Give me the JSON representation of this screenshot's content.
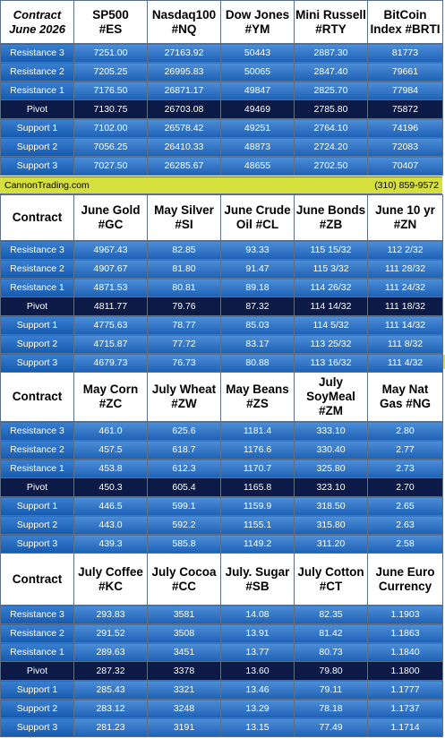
{
  "colors": {
    "band": "#d5df3d",
    "pivot": "#0b1a47",
    "row_top": "#4d8ed7",
    "row_bottom": "#1e62b6"
  },
  "row_labels": [
    "Resistance 3",
    "Resistance 2",
    "Resistance 1",
    "Pivot",
    "Support 1",
    "Support 2",
    "Support 3"
  ],
  "band": {
    "left": "CannonTrading.com",
    "right": "(310) 859-9572"
  },
  "sections": [
    {
      "corner_line1": "Contract",
      "corner_line2": "June 2026",
      "instruments": [
        {
          "line1": "SP500",
          "line2": "#ES"
        },
        {
          "line1": "Nasdaq100",
          "line2": "#NQ"
        },
        {
          "line1": "Dow Jones",
          "line2": "#YM"
        },
        {
          "line1": "Mini Russell",
          "line2": "#RTY"
        },
        {
          "line1": "BitCoin",
          "line2": "Index #BRTI"
        }
      ],
      "rows": [
        [
          "7251.00",
          "27163.92",
          "50443",
          "2887.30",
          "81773"
        ],
        [
          "7205.25",
          "26995.83",
          "50065",
          "2847.40",
          "79661"
        ],
        [
          "7176.50",
          "26871.17",
          "49847",
          "2825.70",
          "77984"
        ],
        [
          "7130.75",
          "26703.08",
          "49469",
          "2785.80",
          "75872"
        ],
        [
          "7102.00",
          "26578.42",
          "49251",
          "2764.10",
          "74196"
        ],
        [
          "7056.25",
          "26410.33",
          "48873",
          "2724.20",
          "72083"
        ],
        [
          "7027.50",
          "26285.67",
          "48655",
          "2702.50",
          "70407"
        ]
      ]
    },
    {
      "corner_line1": "Contract",
      "corner_line2": "",
      "instruments": [
        {
          "line1": "June Gold",
          "line2": "#GC"
        },
        {
          "line1": "May Silver",
          "line2": "#SI"
        },
        {
          "line1": "June Crude",
          "line2": "Oil #CL"
        },
        {
          "line1": "June Bonds",
          "line2": "#ZB"
        },
        {
          "line1": "June 10 yr",
          "line2": "#ZN"
        }
      ],
      "rows": [
        [
          "4967.43",
          "82.85",
          "93.33",
          "115 15/32",
          "112  2/32"
        ],
        [
          "4907.67",
          "81.80",
          "91.47",
          "115  3/32",
          "111 28/32"
        ],
        [
          "4871.53",
          "80.81",
          "89.18",
          "114 26/32",
          "111 24/32"
        ],
        [
          "4811.77",
          "79.76",
          "87.32",
          "114 14/32",
          "111 18/32"
        ],
        [
          "4775.63",
          "78.77",
          "85.03",
          "114  5/32",
          "111 14/32"
        ],
        [
          "4715.87",
          "77.72",
          "83.17",
          "113 25/32",
          "111  8/32"
        ],
        [
          "4679.73",
          "76.73",
          "80.88",
          "113 16/32",
          "111  4/32"
        ]
      ]
    },
    {
      "corner_line1": "Contract",
      "corner_line2": "",
      "instruments": [
        {
          "line1": "May Corn",
          "line2": "#ZC"
        },
        {
          "line1": "July  Wheat",
          "line2": "#ZW"
        },
        {
          "line1": "May Beans",
          "line2": "#ZS"
        },
        {
          "line1": "July",
          "line2": "SoyMeal",
          "line3": "#ZM"
        },
        {
          "line1": "May Nat",
          "line2": "Gas #NG"
        }
      ],
      "rows": [
        [
          "461.0",
          "625.6",
          "1181.4",
          "333.10",
          "2.80"
        ],
        [
          "457.5",
          "618.7",
          "1176.6",
          "330.40",
          "2.77"
        ],
        [
          "453.8",
          "612.3",
          "1170.7",
          "325.80",
          "2.73"
        ],
        [
          "450.3",
          "605.4",
          "1165.8",
          "323.10",
          "2.70"
        ],
        [
          "446.5",
          "599.1",
          "1159.9",
          "318.50",
          "2.65"
        ],
        [
          "443.0",
          "592.2",
          "1155.1",
          "315.80",
          "2.63"
        ],
        [
          "439.3",
          "585.8",
          "1149.2",
          "311.20",
          "2.58"
        ]
      ]
    },
    {
      "corner_line1": "Contract",
      "corner_line2": "",
      "instruments": [
        {
          "line1": "July Coffee",
          "line2": "#KC"
        },
        {
          "line1": "July Cocoa",
          "line2": "#CC"
        },
        {
          "line1": "July. Sugar",
          "line2": "#SB"
        },
        {
          "line1": "July Cotton",
          "line2": "#CT"
        },
        {
          "line1": "June Euro",
          "line2": "Currency"
        }
      ],
      "rows": [
        [
          "293.83",
          "3581",
          "14.08",
          "82.35",
          "1.1903"
        ],
        [
          "291.52",
          "3508",
          "13.91",
          "81.42",
          "1.1863"
        ],
        [
          "289.63",
          "3451",
          "13.77",
          "80.73",
          "1.1840"
        ],
        [
          "287.32",
          "3378",
          "13.60",
          "79.80",
          "1.1800"
        ],
        [
          "285.43",
          "3321",
          "13.46",
          "79.11",
          "1.1777"
        ],
        [
          "283.12",
          "3248",
          "13.29",
          "78.18",
          "1.1737"
        ],
        [
          "281.23",
          "3191",
          "13.15",
          "77.49",
          "1.1714"
        ]
      ]
    }
  ]
}
